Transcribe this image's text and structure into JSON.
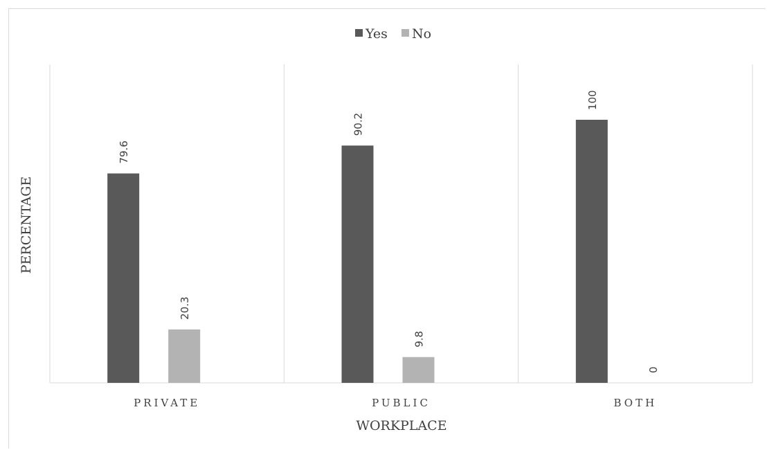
{
  "chart_data": {
    "type": "bar",
    "title": "",
    "xlabel": "WORKPLACE",
    "ylabel": "PERCENTAGE",
    "categories": [
      "PRIVATE",
      "PUBLIC",
      "BOTH"
    ],
    "series": [
      {
        "name": "Yes",
        "values": [
          79.6,
          90.2,
          100
        ],
        "labels": [
          "79.6",
          "90.2",
          "100"
        ],
        "color": "#595959"
      },
      {
        "name": "No",
        "values": [
          20.3,
          9.8,
          0
        ],
        "labels": [
          "20.3",
          "9.8",
          "0"
        ],
        "color": "#b3b3b3"
      }
    ],
    "ylim": [
      0,
      100
    ],
    "grid": false,
    "legend": "top-center",
    "axis_color": "#d9d9d9",
    "text_color": "#404040"
  }
}
